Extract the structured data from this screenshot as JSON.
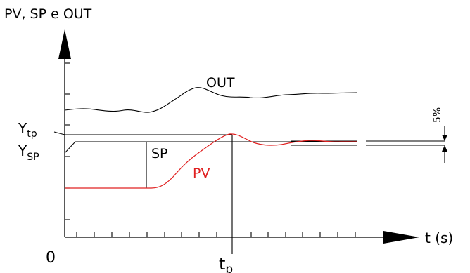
{
  "diagram": {
    "title": "PV, SP e OUT",
    "x_axis_label": "t (s)",
    "origin_label": "0",
    "ytp_label": {
      "main": "Y",
      "sub": "tp"
    },
    "ysp_label": {
      "main": "Y",
      "sub": "SP"
    },
    "tp_label": {
      "main": "t",
      "sub": "p"
    },
    "out_label": "OUT",
    "sp_label": "SP",
    "pv_label": "PV",
    "tolerance_label": "5%",
    "colors": {
      "pv": "#e02020",
      "lines": "#000000",
      "background": "#ffffff"
    }
  }
}
